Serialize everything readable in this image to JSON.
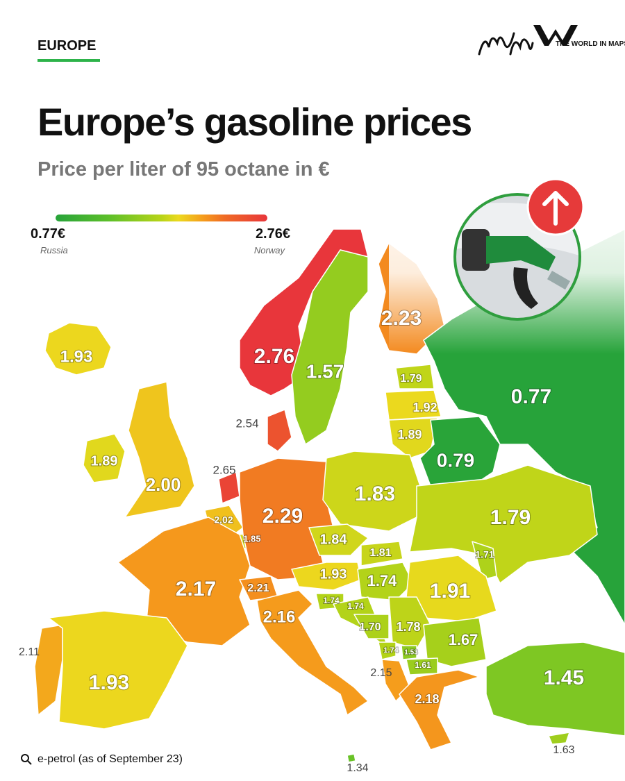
{
  "header": {
    "section": "EUROPE",
    "brand": "THE WORLD IN MAPS",
    "title": "Europe’s gasoline prices",
    "subtitle": "Price per liter of 95 octane in €"
  },
  "legend": {
    "min": {
      "value": 0.77,
      "label": "0.77€",
      "country": "Russia"
    },
    "max": {
      "value": 2.76,
      "label": "2.76€",
      "country": "Norway"
    }
  },
  "regions": [
    {
      "value": 1.93,
      "label": "1.93"
    },
    {
      "value": 2.76,
      "label": "2.76"
    },
    {
      "value": 1.57,
      "label": "1.57"
    },
    {
      "value": 2.23,
      "label": "2.23"
    },
    {
      "value": 0.77,
      "label": "0.77"
    },
    {
      "value": 1.79,
      "label": "1.79"
    },
    {
      "value": 1.92,
      "label": "1.92"
    },
    {
      "value": 1.89,
      "label": "1.89"
    },
    {
      "value": 0.79,
      "label": "0.79"
    },
    {
      "value": 2.54,
      "label": "2.54"
    },
    {
      "value": 1.89,
      "label": "1.89"
    },
    {
      "value": 2.0,
      "label": "2.00"
    },
    {
      "value": 2.65,
      "label": "2.65"
    },
    {
      "value": 2.02,
      "label": "2.02"
    },
    {
      "value": 1.85,
      "label": "1.85"
    },
    {
      "value": 2.29,
      "label": "2.29"
    },
    {
      "value": 1.83,
      "label": "1.83"
    },
    {
      "value": 1.79,
      "label": "1.79"
    },
    {
      "value": 1.84,
      "label": "1.84"
    },
    {
      "value": 1.81,
      "label": "1.81"
    },
    {
      "value": 1.71,
      "label": "1.71"
    },
    {
      "value": 1.93,
      "label": "1.93"
    },
    {
      "value": 1.74,
      "label": "1.74"
    },
    {
      "value": 1.91,
      "label": "1.91"
    },
    {
      "value": 2.17,
      "label": "2.17"
    },
    {
      "value": 2.21,
      "label": "2.21"
    },
    {
      "value": 1.74,
      "label": "1.74"
    },
    {
      "value": 1.74,
      "label": "1.74"
    },
    {
      "value": 2.16,
      "label": "2.16"
    },
    {
      "value": 1.7,
      "label": "1.70"
    },
    {
      "value": 1.78,
      "label": "1.78"
    },
    {
      "value": 1.67,
      "label": "1.67"
    },
    {
      "value": 1.74,
      "label": "1.74"
    },
    {
      "value": 1.53,
      "label": "1.53"
    },
    {
      "value": 1.61,
      "label": "1.61"
    },
    {
      "value": 2.15,
      "label": "2.15"
    },
    {
      "value": 2.18,
      "label": "2.18"
    },
    {
      "value": 1.45,
      "label": "1.45"
    },
    {
      "value": 2.11,
      "label": "2.11"
    },
    {
      "value": 1.93,
      "label": "1.93"
    },
    {
      "value": 1.34,
      "label": "1.34"
    },
    {
      "value": 1.63,
      "label": "1.63"
    }
  ],
  "source": "e-petrol (as of September 23)"
}
